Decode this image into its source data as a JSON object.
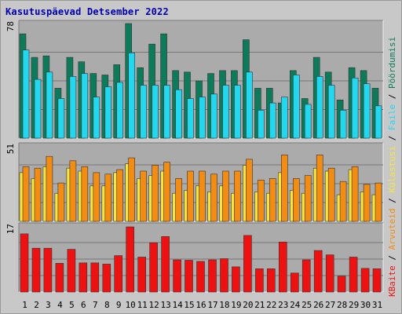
{
  "title": "Kasutuspäevad Detsember 2022",
  "colors": {
    "background": "#c8c8c8",
    "plot_bg": "#ababab",
    "title": "#0000b0",
    "dark_green": "#0d7a5a",
    "cyan": "#22d7ee",
    "orange": "#f28c12",
    "yellow": "#f8e43a",
    "red": "#ee1111",
    "weekend_label": "#2a8a5a"
  },
  "chart_data": [
    {
      "type": "bar",
      "panel": "top",
      "y_max_label": "78",
      "ylim": [
        0,
        78
      ],
      "grid": true,
      "legend": [
        {
          "label": "Pöördumisi",
          "color": "#0d7a5a"
        },
        {
          "label": "Faile",
          "color": "#22d7ee"
        }
      ],
      "categories": [
        "1",
        "2",
        "3",
        "4",
        "5",
        "6",
        "7",
        "8",
        "9",
        "10",
        "11",
        "12",
        "13",
        "14",
        "15",
        "16",
        "17",
        "18",
        "19",
        "20",
        "21",
        "22",
        "23",
        "24",
        "25",
        "26",
        "27",
        "28",
        "29",
        "30",
        "31"
      ],
      "series": [
        {
          "name": "Pöördumisi",
          "values": [
            71,
            55,
            56,
            34,
            55,
            52,
            44,
            43,
            50,
            78,
            48,
            64,
            71,
            46,
            45,
            39,
            44,
            46,
            46,
            67,
            34,
            34,
            24,
            46,
            27,
            55,
            45,
            26,
            48,
            46,
            34
          ]
        },
        {
          "name": "Faile",
          "values": [
            60,
            40,
            45,
            27,
            42,
            44,
            28,
            35,
            38,
            58,
            36,
            36,
            36,
            33,
            27,
            28,
            30,
            36,
            36,
            45,
            19,
            24,
            28,
            43,
            23,
            42,
            36,
            19,
            41,
            37,
            22
          ]
        }
      ]
    },
    {
      "type": "bar",
      "panel": "middle",
      "y_max_label": "51",
      "ylim": [
        0,
        51
      ],
      "grid": true,
      "legend": [
        {
          "label": "Külastusi",
          "color": "#f8e43a"
        },
        {
          "label": "Arvuteid",
          "color": "#f28c12"
        }
      ],
      "categories": [
        "1",
        "2",
        "3",
        "4",
        "5",
        "6",
        "7",
        "8",
        "9",
        "10",
        "11",
        "12",
        "13",
        "14",
        "15",
        "16",
        "17",
        "18",
        "19",
        "20",
        "21",
        "22",
        "23",
        "24",
        "25",
        "26",
        "27",
        "28",
        "29",
        "30",
        "31"
      ],
      "series": [
        {
          "name": "Külastusi",
          "values": [
            33,
            29,
            37,
            19,
            36,
            34,
            24,
            24,
            33,
            39,
            29,
            31,
            34,
            19,
            21,
            24,
            20,
            24,
            19,
            38,
            20,
            19,
            33,
            21,
            19,
            36,
            34,
            18,
            35,
            20,
            18
          ]
        },
        {
          "name": "Arvuteid",
          "values": [
            37,
            36,
            44,
            26,
            41,
            37,
            33,
            32,
            35,
            43,
            34,
            38,
            40,
            29,
            34,
            34,
            32,
            34,
            34,
            42,
            28,
            29,
            45,
            29,
            31,
            45,
            36,
            27,
            37,
            25,
            26
          ]
        }
      ]
    },
    {
      "type": "bar",
      "panel": "bottom",
      "y_max_label": "17",
      "ylim": [
        0,
        17
      ],
      "grid": true,
      "legend": [
        {
          "label": "KBaite",
          "color": "#ee1111"
        }
      ],
      "categories": [
        "1",
        "2",
        "3",
        "4",
        "5",
        "6",
        "7",
        "8",
        "9",
        "10",
        "11",
        "12",
        "13",
        "14",
        "15",
        "16",
        "17",
        "18",
        "19",
        "20",
        "21",
        "22",
        "23",
        "24",
        "25",
        "26",
        "27",
        "28",
        "29",
        "30",
        "31"
      ],
      "series": [
        {
          "name": "KBaite",
          "values": [
            15,
            11.3,
            11.3,
            7.4,
            11,
            7.5,
            7.5,
            7.2,
            9.4,
            16.8,
            9,
            12.7,
            14.3,
            8.3,
            8.2,
            7.9,
            8.3,
            8.6,
            6.5,
            14.6,
            6,
            6,
            12.9,
            4.9,
            8.3,
            10.7,
            9.6,
            4.1,
            9,
            6.1,
            6
          ]
        }
      ]
    }
  ],
  "weekend_days": [
    "3",
    "4",
    "10",
    "11",
    "17",
    "18",
    "24",
    "25",
    "31"
  ]
}
